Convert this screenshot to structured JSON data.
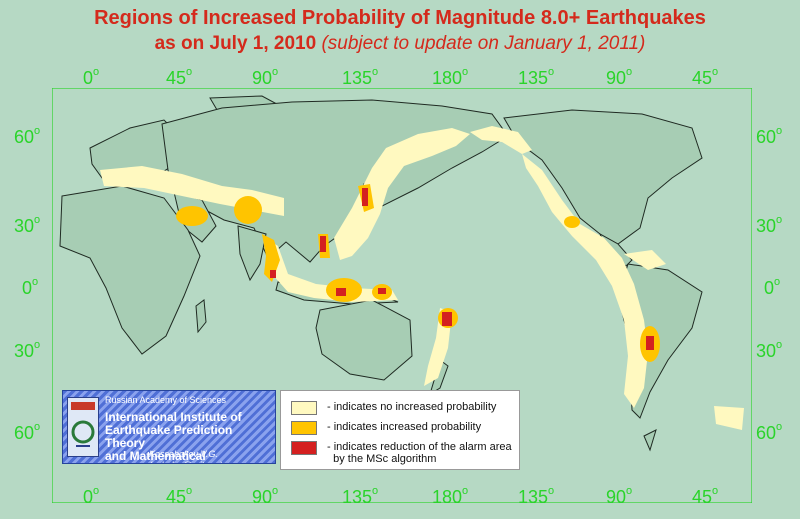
{
  "title": {
    "line1": "Regions of Increased Probability of Magnitude 8.0+ Earthquakes",
    "line2_main": "as on July 1, 2010",
    "line2_sub": "(subject to update on January 1, 2011)"
  },
  "axes": {
    "lon_labels": [
      "0",
      "45",
      "90",
      "135",
      "180",
      "135",
      "90",
      "45"
    ],
    "lat_labels_left": [
      "60",
      "30",
      "0",
      "30",
      "60"
    ],
    "lat_labels_right": [
      "60",
      "30",
      "0",
      "30",
      "60"
    ],
    "degree_symbol": "o"
  },
  "legend": {
    "items": [
      {
        "label": "- indicates no increased probability",
        "color": "#fff9c0"
      },
      {
        "label": "- indicates increased probability",
        "color": "#ffc400"
      },
      {
        "label": "- indicates reduction of the alarm area",
        "label2": "by the MSc algorithm",
        "color": "#d42020"
      }
    ]
  },
  "logo": {
    "line1": "Russian Academy of Sciences",
    "line2": "International Institute of",
    "line3": "Earthquake Prediction Theory",
    "line4": "and Mathematical Geophysics",
    "credit": "Kossobokov V.G. (volodya@mitp.ru)"
  },
  "colors": {
    "ocean": "#b6d9c4",
    "land": "#a7cdb4",
    "frame": "#2ad42a",
    "title": "#d42a1c",
    "no_increase": "#fff9c0",
    "increased": "#ffc400",
    "reduced": "#d42020"
  }
}
